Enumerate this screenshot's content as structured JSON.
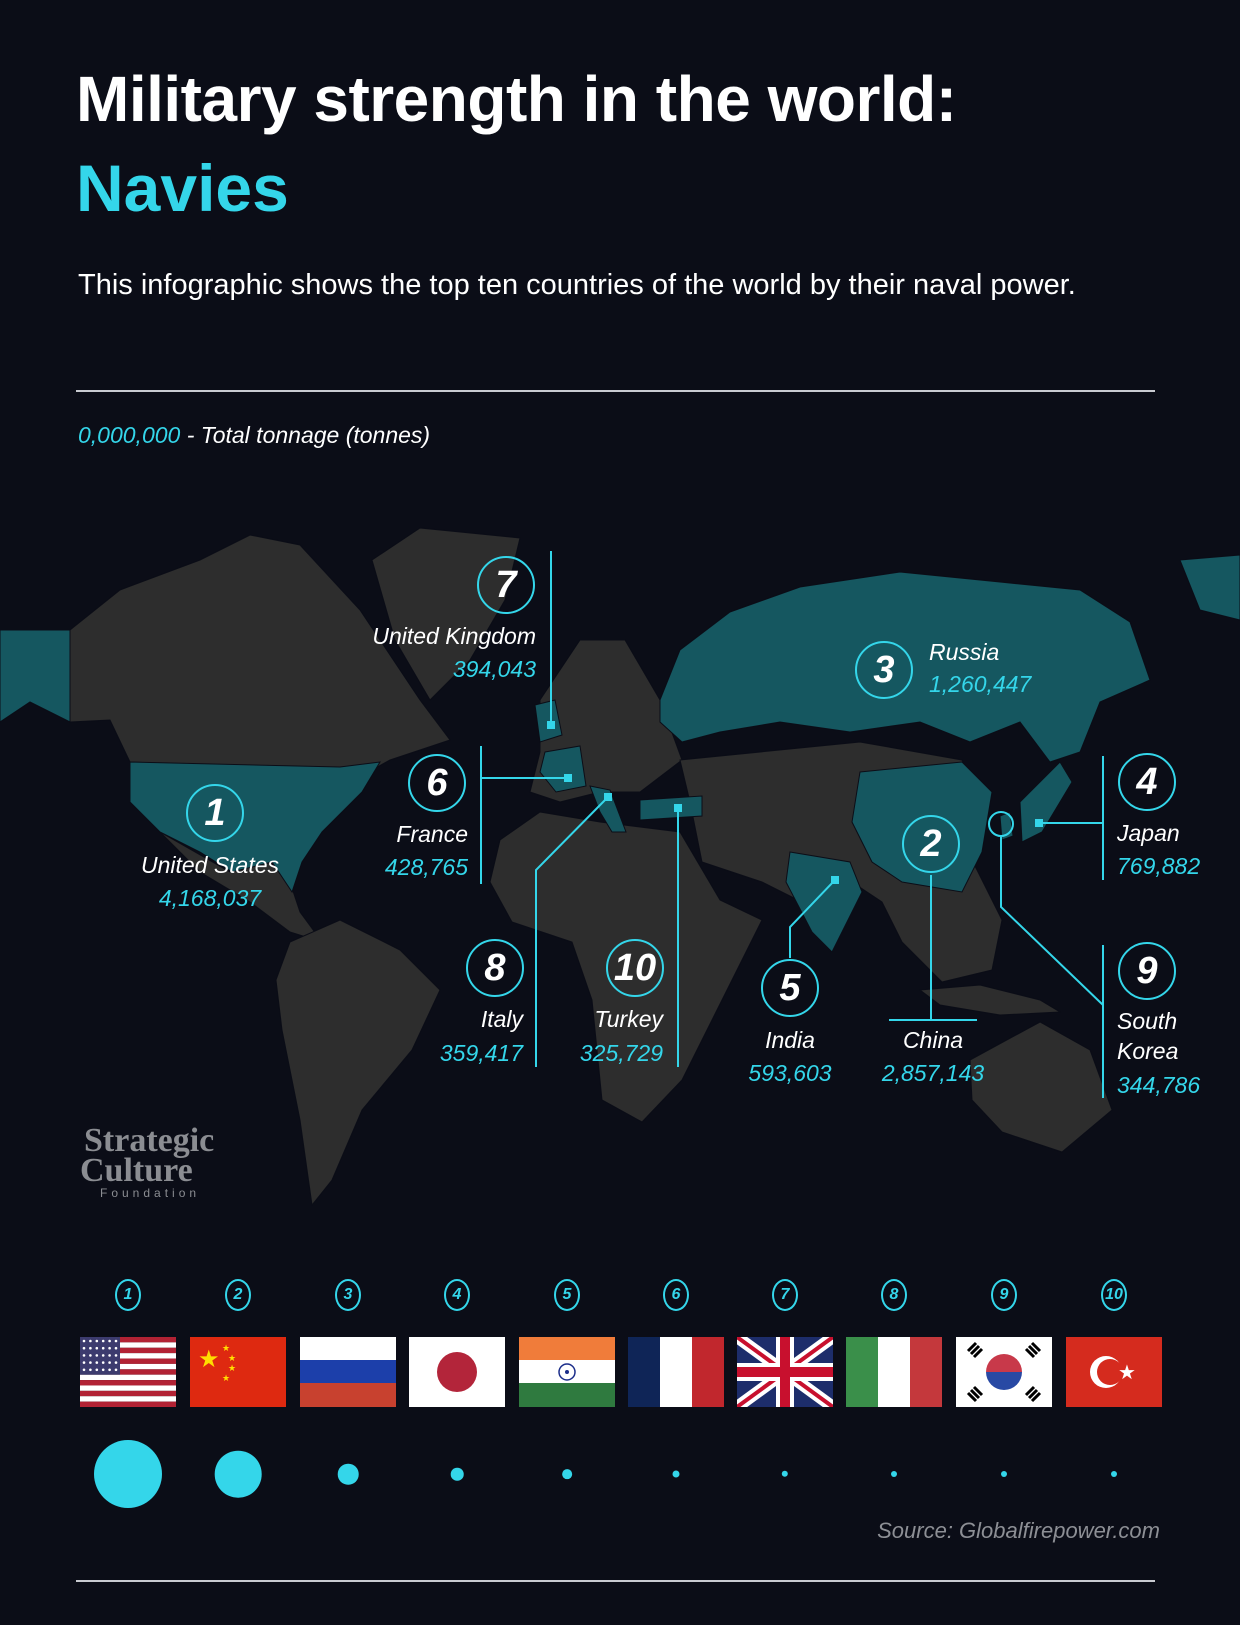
{
  "header": {
    "title": "Military strength in the world:",
    "subtitle": "Navies",
    "description": "This infographic shows the top ten countries of the world by their naval power."
  },
  "legend": {
    "sample_number": "0,000,000",
    "label": "- Total tonnage (tonnes)"
  },
  "colors": {
    "background": "#0b0d17",
    "accent": "#34d6ea",
    "highlighted_land": "#155760",
    "land": "#2d2d2d"
  },
  "countries": [
    {
      "rank": "1",
      "name": "United States",
      "tonnage": "4,168,037",
      "value": 4168037,
      "flag": "us-flag"
    },
    {
      "rank": "2",
      "name": "China",
      "tonnage": "2,857,143",
      "value": 2857143,
      "flag": "china-flag"
    },
    {
      "rank": "3",
      "name": "Russia",
      "tonnage": "1,260,447",
      "value": 1260447,
      "flag": "russia-flag"
    },
    {
      "rank": "4",
      "name": "Japan",
      "tonnage": "769,882",
      "value": 769882,
      "flag": "japan-flag"
    },
    {
      "rank": "5",
      "name": "India",
      "tonnage": "593,603",
      "value": 593603,
      "flag": "india-flag"
    },
    {
      "rank": "6",
      "name": "France",
      "tonnage": "428,765",
      "value": 428765,
      "flag": "france-flag"
    },
    {
      "rank": "7",
      "name": "United Kingdom",
      "tonnage": "394,043",
      "value": 394043,
      "flag": "uk-flag"
    },
    {
      "rank": "8",
      "name": "Italy",
      "tonnage": "359,417",
      "value": 359417,
      "flag": "italy-flag"
    },
    {
      "rank": "9",
      "name": "South Korea",
      "name_line1": "South",
      "name_line2": "Korea",
      "tonnage": "344,786",
      "value": 344786,
      "flag": "south-korea-flag"
    },
    {
      "rank": "10",
      "name": "Turkey",
      "tonnage": "325,729",
      "value": 325729,
      "flag": "turkey-flag"
    }
  ],
  "logo": {
    "line1": "Strategic",
    "line2": "Culture",
    "line3": "Foundation"
  },
  "source": "Source: Globalfirepower.com"
}
